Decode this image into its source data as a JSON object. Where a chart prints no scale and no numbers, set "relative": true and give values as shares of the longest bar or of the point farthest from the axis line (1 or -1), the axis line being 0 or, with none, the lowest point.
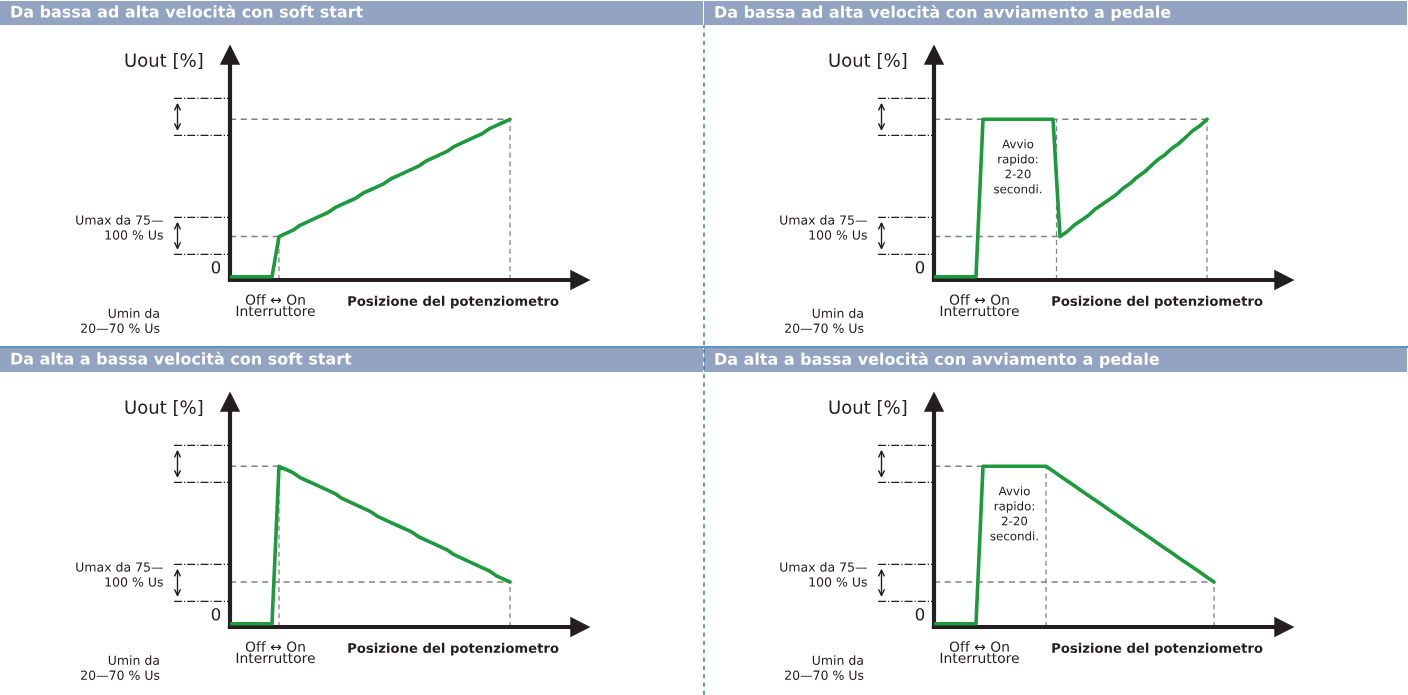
{
  "chart_data": [
    {
      "type": "line",
      "relative": true,
      "title": "Da bassa ad alta velocità con soft start",
      "xlabel": "Posizione del potenziometro",
      "ylabel": "Uout [%]",
      "line_style": "solid",
      "categories": [
        null,
        null,
        null,
        null,
        null,
        null,
        null,
        null,
        null,
        null,
        null,
        null,
        null,
        null,
        null,
        null,
        null,
        null,
        null,
        null,
        null,
        null,
        null,
        null,
        null,
        null,
        null,
        null,
        null,
        null,
        null,
        null,
        null,
        null,
        null,
        null,
        null,
        null,
        null,
        null,
        null,
        null,
        null,
        null,
        null,
        null,
        null,
        null,
        null,
        null,
        null
      ],
      "series": [
        {
          "color": "#1e9a3e",
          "values": [
            0.02,
            0.02,
            0.02,
            0.02,
            0.02,
            0.02,
            0.02,
            0.27,
            0.29,
            0.31,
            0.34,
            0.36,
            0.38,
            0.4,
            0.42,
            0.45,
            0.47,
            0.49,
            0.51,
            0.54,
            0.56,
            0.58,
            0.6,
            0.63,
            0.65,
            0.67,
            0.69,
            0.71,
            0.74,
            0.76,
            0.78,
            0.8,
            0.83,
            0.85,
            0.87,
            0.89,
            0.91,
            0.94,
            0.96,
            0.98,
            1.0,
            null,
            null,
            null,
            null,
            null,
            null,
            null,
            null,
            null,
            null
          ]
        }
      ],
      "ref_lines": [
        {
          "axis": "y",
          "value": 1,
          "color": "#808080",
          "line_style": "dashed"
        },
        {
          "axis": "y",
          "value": 0.27,
          "color": "#808080",
          "line_style": "dashed"
        }
      ],
      "annotations": [
        "0",
        "Umax da 75—\n100 % Us",
        "Umin da\n20—70 % Us",
        "Off ↔ On",
        "Interruttore"
      ]
    },
    {
      "type": "line",
      "relative": true,
      "title": "Da bassa ad alta velocità con avviamento a pedale",
      "xlabel": "Posizione del potenziometro",
      "ylabel": "Uout [%]",
      "line_style": "solid",
      "categories": [
        null,
        null,
        null,
        null,
        null,
        null,
        null,
        null,
        null,
        null,
        null,
        null,
        null,
        null,
        null,
        null,
        null,
        null,
        null,
        null,
        null,
        null,
        null,
        null,
        null,
        null,
        null,
        null,
        null,
        null,
        null,
        null,
        null,
        null,
        null,
        null,
        null,
        null,
        null,
        null,
        null,
        null,
        null,
        null,
        null,
        null,
        null,
        null,
        null,
        null,
        null
      ],
      "series": [
        {
          "color": "#1e9a3e",
          "values": [
            0.02,
            0.02,
            0.02,
            0.02,
            0.02,
            0.02,
            0.02,
            1.0,
            1.0,
            1.0,
            1.0,
            1.0,
            1.0,
            1.0,
            1.0,
            1.0,
            1.0,
            1.0,
            0.27,
            0.3,
            0.34,
            0.37,
            0.4,
            0.44,
            0.47,
            0.5,
            0.53,
            0.57,
            0.6,
            0.64,
            0.67,
            0.71,
            0.75,
            0.78,
            0.82,
            0.85,
            0.89,
            0.93,
            0.96,
            1.0,
            null,
            null,
            null,
            null,
            null,
            null,
            null,
            null,
            null,
            null,
            null
          ]
        }
      ],
      "ref_lines": [
        {
          "axis": "y",
          "value": 1,
          "color": "#808080",
          "line_style": "dashed"
        },
        {
          "axis": "y",
          "value": 0.27,
          "color": "#808080",
          "line_style": "dashed"
        }
      ],
      "annotations": [
        "0",
        "Umax da 75—\n100 % Us",
        "Umin da\n20—70 % Us",
        "Off ↔ On",
        "Interruttore",
        "Avvio\nrapido:\n2-20\nsecondi."
      ]
    },
    {
      "type": "line",
      "relative": true,
      "title": "Da alta a bassa velocità con soft start",
      "xlabel": "Posizione del potenziometro",
      "ylabel": "Uout [%]",
      "line_style": "solid",
      "categories": [
        null,
        null,
        null,
        null,
        null,
        null,
        null,
        null,
        null,
        null,
        null,
        null,
        null,
        null,
        null,
        null,
        null,
        null,
        null,
        null,
        null,
        null,
        null,
        null,
        null,
        null,
        null,
        null,
        null,
        null,
        null,
        null,
        null,
        null,
        null,
        null,
        null,
        null,
        null,
        null,
        null,
        null,
        null,
        null,
        null,
        null,
        null,
        null,
        null,
        null,
        null
      ],
      "series": [
        {
          "color": "#1e9a3e",
          "values": [
            0.02,
            0.02,
            0.02,
            0.02,
            0.02,
            0.02,
            0.02,
            1.0,
            0.98,
            0.96,
            0.93,
            0.91,
            0.89,
            0.87,
            0.85,
            0.83,
            0.8,
            0.78,
            0.76,
            0.74,
            0.72,
            0.69,
            0.67,
            0.65,
            0.63,
            0.61,
            0.59,
            0.56,
            0.54,
            0.52,
            0.5,
            0.48,
            0.45,
            0.43,
            0.41,
            0.39,
            0.37,
            0.35,
            0.32,
            0.3,
            0.28,
            null,
            null,
            null,
            null,
            null,
            null,
            null,
            null,
            null,
            null
          ]
        }
      ],
      "ref_lines": [
        {
          "axis": "y",
          "value": 1,
          "color": "#808080",
          "line_style": "dashed"
        },
        {
          "axis": "y",
          "value": 0.28,
          "color": "#808080",
          "line_style": "dashed"
        }
      ],
      "annotations": [
        "0",
        "Umax da 75—\n100 % Us",
        "Umin da\n20—70 % Us",
        "Off ↔ On",
        "Interruttore"
      ]
    },
    {
      "type": "line",
      "relative": true,
      "title": "Da alta a bassa velocità con avviamento a pedale",
      "xlabel": "Posizione del potenziometro",
      "ylabel": "Uout [%]",
      "line_style": "solid",
      "categories": [
        null,
        null,
        null,
        null,
        null,
        null,
        null,
        null,
        null,
        null,
        null,
        null,
        null,
        null,
        null,
        null,
        null,
        null,
        null,
        null,
        null,
        null,
        null,
        null,
        null,
        null,
        null,
        null,
        null,
        null,
        null,
        null,
        null,
        null,
        null,
        null,
        null,
        null,
        null,
        null,
        null,
        null,
        null,
        null,
        null,
        null,
        null,
        null,
        null,
        null,
        null
      ],
      "series": [
        {
          "color": "#1e9a3e",
          "values": [
            0.02,
            0.02,
            0.02,
            0.02,
            0.02,
            0.02,
            0.02,
            1.0,
            1.0,
            1.0,
            1.0,
            1.0,
            1.0,
            1.0,
            1.0,
            1.0,
            1.0,
            0.97,
            0.94,
            0.91,
            0.88,
            0.85,
            0.82,
            0.79,
            0.76,
            0.73,
            0.7,
            0.67,
            0.64,
            0.61,
            0.58,
            0.55,
            0.52,
            0.49,
            0.46,
            0.43,
            0.4,
            0.37,
            0.34,
            0.31,
            0.28,
            null,
            null,
            null,
            null,
            null,
            null,
            null,
            null,
            null,
            null
          ]
        }
      ],
      "ref_lines": [
        {
          "axis": "y",
          "value": 1,
          "color": "#808080",
          "line_style": "dashed"
        },
        {
          "axis": "y",
          "value": 0.28,
          "color": "#808080",
          "line_style": "dashed"
        }
      ],
      "annotations": [
        "0",
        "Umax da 75—\n100 % Us",
        "Umin da\n20—70 % Us",
        "Off ↔ On",
        "Interruttore",
        "Avvio\nrapido:\n2-20\nsecondi."
      ]
    }
  ]
}
